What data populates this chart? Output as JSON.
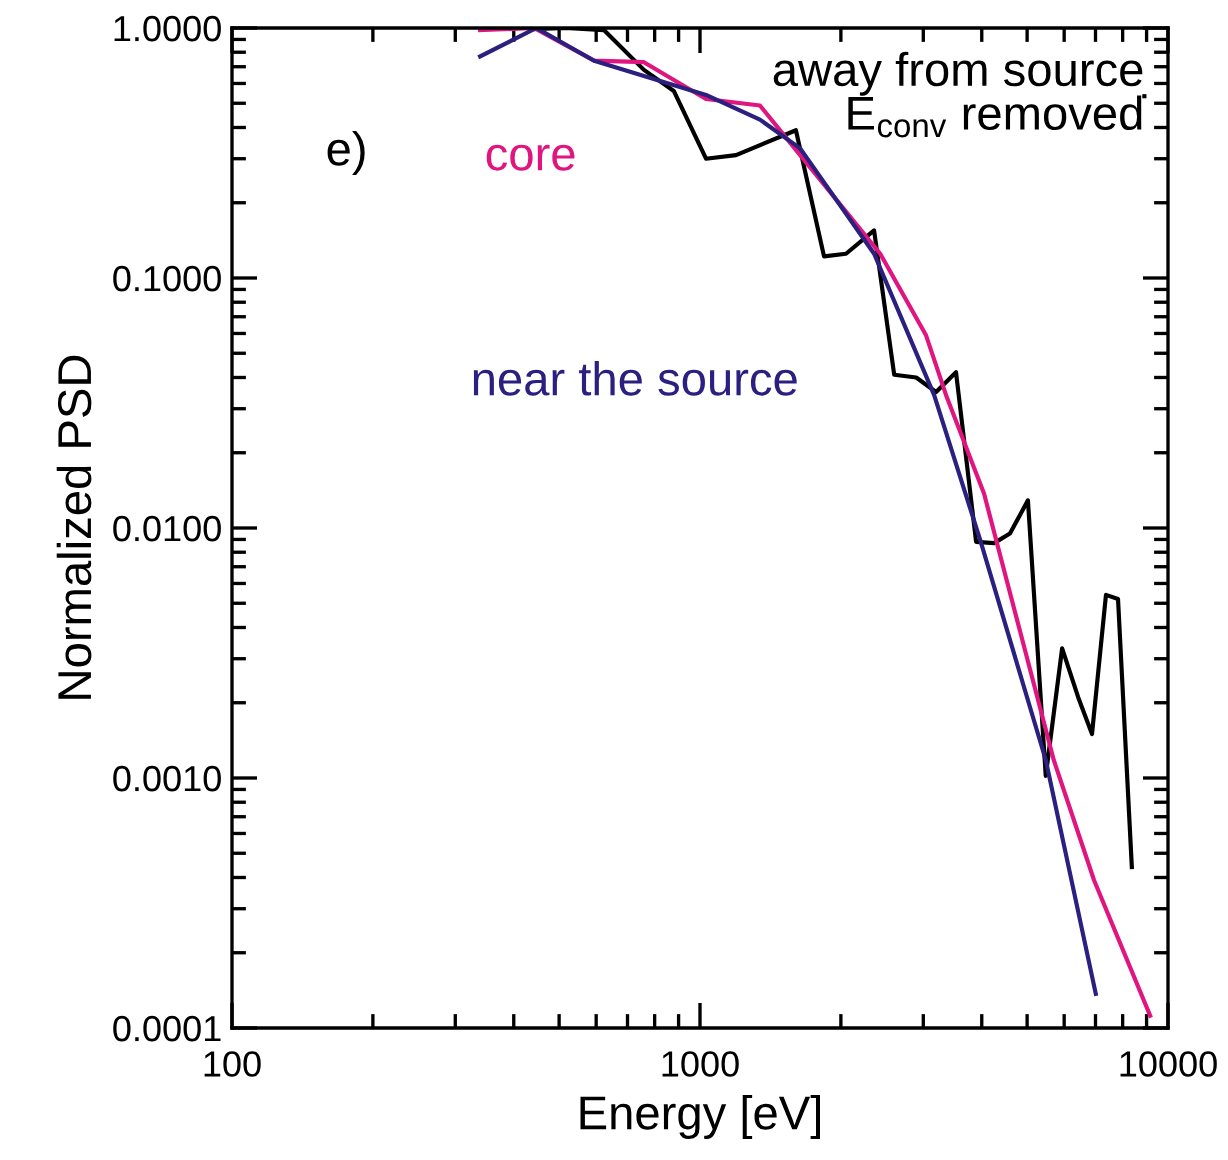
{
  "chart_data": {
    "type": "line",
    "xlabel": "Energy [eV]",
    "ylabel": "Normalized PSD",
    "log": "xy",
    "xlim": [
      100,
      10000
    ],
    "xticks": [
      100,
      1000,
      10000
    ],
    "ylim": [
      0.0001,
      1.0
    ],
    "yticks": [
      {
        "value": 1.0,
        "label": "1.0000"
      },
      {
        "value": 0.1,
        "label": "0.1000"
      },
      {
        "value": 0.01,
        "label": "0.0100"
      },
      {
        "value": 0.001,
        "label": "0.0010"
      },
      {
        "value": 0.0001,
        "label": "0.0001"
      }
    ],
    "grid": false,
    "legend": "top right",
    "marker": "none",
    "line_style": "solid",
    "annotations": [
      "e)"
    ],
    "series": [
      {
        "name": "away from source\nE$_{conv}$ removed",
        "color": "#000000",
        "x": [
          442,
          517,
          624,
          759,
          879,
          1030,
          1194,
          1603,
          1841,
          2051,
          2355,
          2600,
          2897,
          3195,
          3524,
          3890,
          4250,
          4595,
          5020,
          5480,
          5940,
          6430,
          6880,
          7370,
          7820,
          8370
        ],
        "values": [
          0.99,
          1.0,
          0.98,
          0.68,
          0.56,
          0.3,
          0.31,
          0.39,
          0.122,
          0.125,
          0.155,
          0.041,
          0.04,
          0.035,
          0.042,
          0.0088,
          0.0087,
          0.0095,
          0.0129,
          0.00102,
          0.0033,
          0.0021,
          0.0015,
          0.0054,
          0.0052,
          0.00044
        ]
      },
      {
        "name": "core",
        "color": "#e0157f",
        "x": [
          339,
          442,
          594,
          759,
          1030,
          1343,
          1637,
          2427,
          3041,
          3356,
          4046,
          5700,
          6950,
          9160
        ],
        "values": [
          0.98,
          1.0,
          0.74,
          0.73,
          0.52,
          0.49,
          0.31,
          0.125,
          0.059,
          0.034,
          0.0137,
          0.00118,
          0.00039,
          0.000112
        ]
      },
      {
        "name": "near the source",
        "color": "#2b1f80",
        "x": [
          339,
          447,
          594,
          1030,
          1343,
          1637,
          2355,
          3165,
          3966,
          5480,
          7010
        ],
        "values": [
          0.77,
          1.0,
          0.74,
          0.54,
          0.43,
          0.33,
          0.125,
          0.034,
          0.009,
          0.00118,
          0.000137
        ]
      }
    ]
  }
}
